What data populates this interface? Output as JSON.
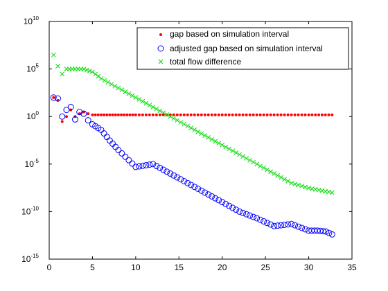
{
  "colors": {
    "background": "#ffffff",
    "axes": "#000000",
    "gap": "#ff0000",
    "adjusted": "#0000ff",
    "flow": "#00dd00"
  },
  "chart_data": {
    "type": "scatter",
    "title": "",
    "xlabel": "",
    "ylabel": "",
    "xlim": [
      0,
      35
    ],
    "ylim": [
      1e-15,
      10000000000.0
    ],
    "yscale": "log",
    "grid": false,
    "legend_position": "top-right",
    "x_ticks": [
      "0",
      "5",
      "10",
      "15",
      "20",
      "25",
      "30",
      "35"
    ],
    "y_ticks": [
      {
        "base": "10",
        "exp": "10"
      },
      {
        "base": "10",
        "exp": "5"
      },
      {
        "base": "10",
        "exp": "0"
      },
      {
        "base": "10",
        "exp": "-5"
      },
      {
        "base": "10",
        "exp": "-10"
      },
      {
        "base": "10",
        "exp": "-15"
      }
    ],
    "series": [
      {
        "name": "gap based on simulation interval",
        "marker": "point",
        "color": "#ff0000",
        "x": [
          0.5,
          1.0,
          1.5,
          2.0,
          2.5,
          3.0,
          3.5,
          4.0,
          4.5,
          5.0,
          6.0,
          7.0,
          8.0,
          9.0,
          10.0,
          12.0,
          14.0,
          16.0,
          18.0,
          20.0,
          22.0,
          24.0,
          26.0,
          28.0,
          30.0,
          32.7
        ],
        "y": [
          100,
          50,
          0.3,
          1.0,
          5.0,
          1.0,
          2.0,
          3.0,
          2.0,
          1.5,
          1.5,
          1.5,
          1.5,
          1.5,
          1.5,
          1.5,
          1.5,
          1.5,
          1.5,
          1.5,
          1.5,
          1.5,
          1.5,
          1.5,
          1.5,
          1.5
        ]
      },
      {
        "name": "adjusted gap based on simulation interval",
        "marker": "circle",
        "color": "#0000ff",
        "x": [
          0.5,
          1.0,
          1.5,
          2.0,
          2.5,
          3.0,
          3.5,
          4.0,
          4.5,
          5.0,
          6.0,
          7.0,
          8.0,
          10.0,
          12.0,
          14.0,
          16.0,
          18.0,
          20.0,
          22.0,
          24.0,
          26.0,
          28.0,
          30.0,
          31.0,
          32.0,
          32.7
        ],
        "y": [
          100,
          80,
          1.0,
          5.0,
          10,
          0.5,
          3.0,
          2.0,
          0.4,
          0.15,
          0.04,
          0.003,
          0.0003,
          5e-06,
          1e-05,
          1e-06,
          1e-07,
          1e-08,
          1e-09,
          1e-10,
          2e-11,
          3e-12,
          5e-12,
          1e-12,
          1e-12,
          8e-13,
          4e-13
        ]
      },
      {
        "name": "total flow difference",
        "marker": "x",
        "color": "#00dd00",
        "x": [
          0.5,
          1.0,
          1.5,
          2.0,
          3.0,
          4.0,
          5.0,
          6.0,
          8.0,
          10.0,
          12.0,
          14.0,
          16.0,
          18.0,
          20.0,
          22.0,
          24.0,
          26.0,
          28.0,
          30.0,
          32.7
        ],
        "y": [
          3000000.0,
          200000.0,
          30000.0,
          100000.0,
          100000.0,
          100000.0,
          50000.0,
          10000.0,
          1000.0,
          100,
          10,
          1.0,
          0.1,
          0.01,
          0.001,
          0.0001,
          1e-05,
          1e-06,
          1e-07,
          3e-08,
          1e-08
        ]
      }
    ]
  }
}
